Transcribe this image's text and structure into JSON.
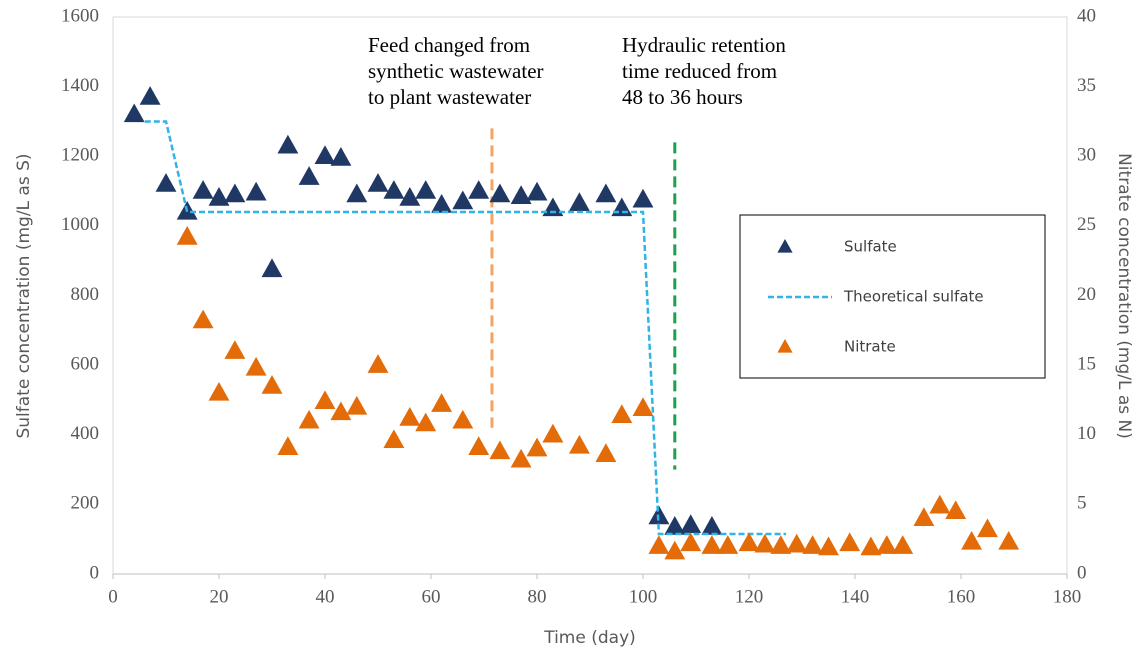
{
  "chart_data": {
    "type": "scatter",
    "xlabel": "Time (day)",
    "ylabel": "Sulfate concentration (mg/L as S)",
    "y2label": "Nitrate concentration (mg/L as N)",
    "xlim": [
      0,
      180
    ],
    "xticks": [
      0,
      20,
      40,
      60,
      80,
      100,
      120,
      140,
      160,
      180
    ],
    "ylim": [
      0,
      1600
    ],
    "yticks": [
      0,
      200,
      400,
      600,
      800,
      1000,
      1200,
      1400,
      1600
    ],
    "y2lim": [
      0,
      40
    ],
    "y2ticks": [
      0,
      5,
      10,
      15,
      20,
      25,
      30,
      35,
      40
    ],
    "legend": "right",
    "grid": false,
    "series": [
      {
        "name": "Sulfate",
        "type": "scatter",
        "color": "#1f3864",
        "x": [
          4,
          7,
          10,
          14,
          17,
          20,
          23,
          27,
          30,
          33,
          37,
          40,
          43,
          46,
          50,
          53,
          56,
          59,
          62,
          66,
          69,
          73,
          77,
          80,
          83,
          88,
          93,
          96,
          100,
          103,
          106,
          109,
          113
        ],
        "values": [
          1320,
          1370,
          1120,
          1040,
          1100,
          1080,
          1090,
          1095,
          875,
          1230,
          1140,
          1200,
          1195,
          1090,
          1120,
          1100,
          1080,
          1100,
          1060,
          1070,
          1100,
          1090,
          1085,
          1095,
          1050,
          1065,
          1090,
          1050,
          1075,
          165,
          135,
          140,
          135
        ]
      },
      {
        "name": "Theoretical sulfate",
        "type": "line",
        "color": "#2eb4e8",
        "x": [
          6,
          10,
          14,
          100,
          103,
          127
        ],
        "values": [
          1300,
          1300,
          1040,
          1040,
          115,
          115
        ]
      },
      {
        "name": "Nitrate",
        "type": "scatter",
        "color": "#e36c09",
        "axis": "y2",
        "x": [
          14,
          17,
          20,
          23,
          27,
          30,
          33,
          37,
          40,
          43,
          46,
          50,
          53,
          56,
          59,
          62,
          66,
          69,
          73,
          77,
          80,
          83,
          88,
          93,
          96,
          100,
          103,
          106,
          109,
          113,
          116,
          120,
          123,
          126,
          129,
          132,
          135,
          139,
          143,
          146,
          149,
          153,
          156,
          159,
          162,
          165,
          169
        ],
        "values": [
          24.2,
          18.2,
          13,
          16,
          14.8,
          13.5,
          9.1,
          11,
          12.4,
          11.6,
          12,
          15,
          9.6,
          11.2,
          10.8,
          12.2,
          11,
          9.1,
          8.8,
          8.2,
          9,
          10,
          9.2,
          8.6,
          11.4,
          11.9,
          2,
          1.6,
          2.2,
          2,
          2,
          2.2,
          2.1,
          2,
          2.1,
          2,
          1.9,
          2.2,
          1.9,
          2,
          2,
          4,
          4.9,
          4.5,
          2.3,
          3.2,
          2.3
        ]
      }
    ],
    "annotations": [
      {
        "lines": [
          "Feed changed from",
          "synthetic wastewater",
          "to plant wastewater"
        ],
        "x": 71.5,
        "y": [
          1280,
          420
        ],
        "color": "#f4a460"
      },
      {
        "lines": [
          "Hydraulic retention",
          "time reduced from",
          "48 to 36 hours"
        ],
        "x": 106,
        "y": [
          1240,
          300
        ],
        "color": "#1aa34a"
      }
    ]
  }
}
